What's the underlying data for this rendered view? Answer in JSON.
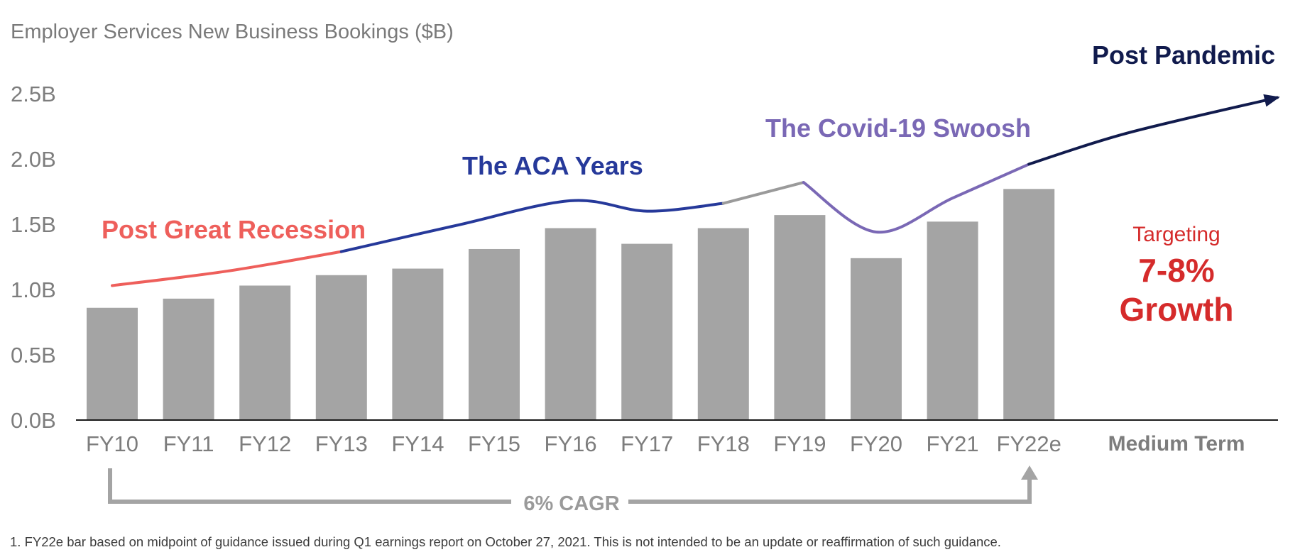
{
  "chart_data": {
    "type": "bar",
    "title": "Employer Services  New Business Bookings ($B)",
    "categories": [
      "FY10",
      "FY11",
      "FY12",
      "FY13",
      "FY14",
      "FY15",
      "FY16",
      "FY17",
      "FY18",
      "FY19",
      "FY20",
      "FY21",
      "FY22e"
    ],
    "extra_category": "Medium Term",
    "values": [
      0.86,
      0.93,
      1.03,
      1.11,
      1.16,
      1.31,
      1.47,
      1.35,
      1.47,
      1.57,
      1.24,
      1.52,
      1.77
    ],
    "ylim": [
      0,
      2.5
    ],
    "yticks": [
      0,
      0.5,
      1.0,
      1.5,
      2.0,
      2.5
    ],
    "ytick_labels": [
      "0.0B",
      "0.5B",
      "1.0B",
      "1.5B",
      "2.0B",
      "2.5B"
    ],
    "units": "$B",
    "bar_color": "#a4a4a4",
    "trend_eras": [
      {
        "label": "Post Great Recession",
        "color": "#ee5f5b",
        "points": [
          [
            0,
            1.03
          ],
          [
            1.5,
            1.14
          ],
          [
            3,
            1.29
          ]
        ]
      },
      {
        "label": "The ACA Years",
        "color": "#26399a",
        "points": [
          [
            3,
            1.29
          ],
          [
            4.5,
            1.49
          ],
          [
            6,
            1.68
          ],
          [
            7,
            1.6
          ],
          [
            8,
            1.66
          ]
        ]
      },
      {
        "label": "",
        "color": "#9a9a9a",
        "points": [
          [
            8,
            1.66
          ],
          [
            9.05,
            1.82
          ]
        ]
      },
      {
        "label": "The Covid-19 Swoosh",
        "color": "#7a68b5",
        "points": [
          [
            9.05,
            1.82
          ],
          [
            10,
            1.44
          ],
          [
            11,
            1.7
          ],
          [
            12,
            1.96
          ]
        ]
      },
      {
        "label": "Post Pandemic",
        "color": "#111b4d",
        "points": [
          [
            12,
            1.96
          ],
          [
            13.3,
            2.2
          ],
          [
            15.25,
            2.47
          ]
        ]
      }
    ],
    "target": {
      "line1": "Targeting",
      "line2": "7-8%",
      "line3": "Growth",
      "color": "#d52b2b"
    },
    "cagr": {
      "label": "6% CAGR",
      "from": "FY10",
      "to": "FY22e"
    },
    "footnote": "1. FY22e bar based on midpoint of guidance issued during Q1 earnings report on October 27, 2021. This is not intended to be an update or reaffirmation of such guidance."
  }
}
